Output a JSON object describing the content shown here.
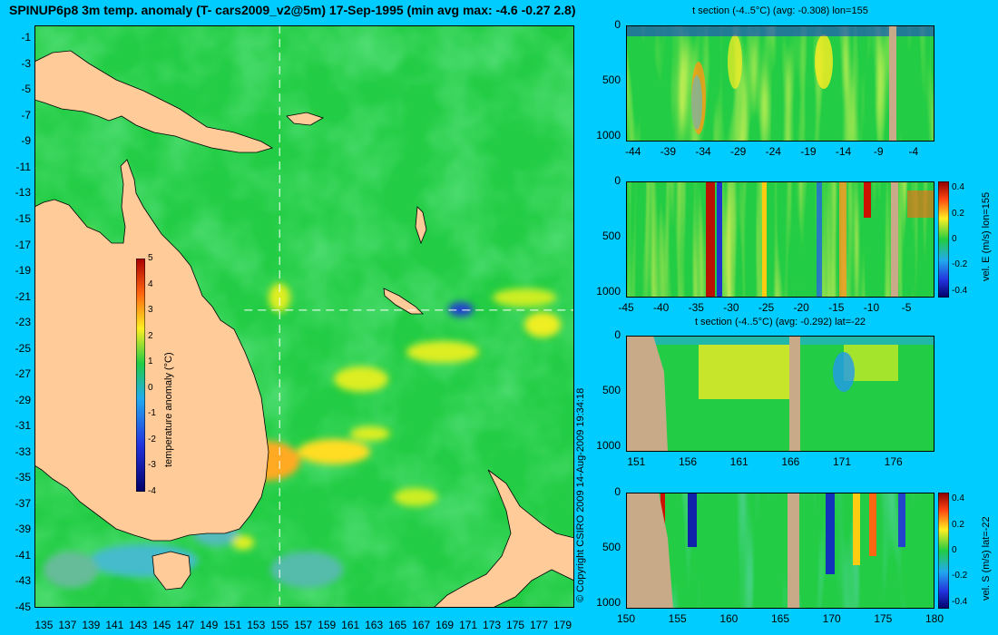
{
  "title": "SPINUP6p8 3m temp. anomaly (T- cars2009_v2@5m) 17-Sep-1995 (min avg max: -4.6 -0.27 2.8)",
  "copyright": "© Copyright CSIRO 2009   14-Aug-2009 19:34:18",
  "colors": {
    "background": "#00ccff",
    "ocean": "#22cc44",
    "land": "#ffcc99",
    "section_land": "#c8aa88"
  },
  "chart_data": [
    {
      "type": "heatmap",
      "name": "map",
      "title": "SPINUP6p8 3m temp. anomaly (T- cars2009_v2@5m) 17-Sep-1995 (min avg max: -4.6 -0.27 2.8)",
      "x_ticks": [
        "135",
        "137",
        "139",
        "141",
        "143",
        "145",
        "147",
        "149",
        "151",
        "153",
        "155",
        "157",
        "159",
        "161",
        "163",
        "165",
        "167",
        "169",
        "171",
        "173",
        "175",
        "177",
        "179"
      ],
      "y_ticks": [
        "-1",
        "-3",
        "-5",
        "-7",
        "-9",
        "-11",
        "-13",
        "-15",
        "-17",
        "-19",
        "-21",
        "-23",
        "-25",
        "-27",
        "-29",
        "-31",
        "-33",
        "-35",
        "-37",
        "-39",
        "-41",
        "-43",
        "-45"
      ],
      "xlim": [
        134.2,
        180
      ],
      "ylim": [
        -45,
        0
      ],
      "section_lines": {
        "lon": 155,
        "lat": -22
      },
      "colorbar": {
        "label": "temperature anomaly (°C)",
        "ticks": [
          "5",
          "4",
          "3",
          "2",
          "1",
          "0",
          "-1",
          "-2",
          "-3",
          "-4"
        ],
        "range": [
          -4,
          5
        ]
      }
    },
    {
      "type": "heatmap",
      "name": "t-section-lon",
      "title": "t section (-4..5°C) (avg: -0.308) lon=155",
      "x_ticks": [
        "-44",
        "-39",
        "-34",
        "-29",
        "-24",
        "-19",
        "-14",
        "-9",
        "-4"
      ],
      "y_ticks": [
        "0",
        "500",
        "1000"
      ],
      "xlim": [
        -45,
        -1
      ],
      "ylim": [
        1050,
        0
      ]
    },
    {
      "type": "heatmap",
      "name": "vel-e-lon",
      "title": "",
      "x_ticks": [
        "-45",
        "-40",
        "-35",
        "-30",
        "-25",
        "-20",
        "-15",
        "-10",
        "-5"
      ],
      "y_ticks": [
        "0",
        "500",
        "1000"
      ],
      "xlim": [
        -45,
        -1
      ],
      "ylim": [
        1050,
        0
      ],
      "colorbar": {
        "label": "vel. E (m/s) lon=155",
        "ticks": [
          "0.4",
          "0.2",
          "0",
          "-0.2",
          "-0.4"
        ],
        "range": [
          -0.45,
          0.45
        ]
      }
    },
    {
      "type": "heatmap",
      "name": "t-section-lat",
      "title": "t section (-4..5°C) (avg: -0.292) lat=-22",
      "x_ticks": [
        "151",
        "156",
        "161",
        "166",
        "171",
        "176"
      ],
      "y_ticks": [
        "0",
        "500",
        "1000"
      ],
      "xlim": [
        150,
        180
      ],
      "ylim": [
        1050,
        0
      ]
    },
    {
      "type": "heatmap",
      "name": "vel-s-lat",
      "title": "",
      "x_ticks": [
        "150",
        "155",
        "160",
        "165",
        "170",
        "175",
        "180"
      ],
      "y_ticks": [
        "0",
        "500",
        "1000"
      ],
      "xlim": [
        150,
        180
      ],
      "ylim": [
        1050,
        0
      ],
      "colorbar": {
        "label": "vel. S (m/s) lat=-22",
        "ticks": [
          "0.4",
          "0.2",
          "0",
          "-0.2",
          "-0.4"
        ],
        "range": [
          -0.45,
          0.45
        ]
      }
    }
  ]
}
